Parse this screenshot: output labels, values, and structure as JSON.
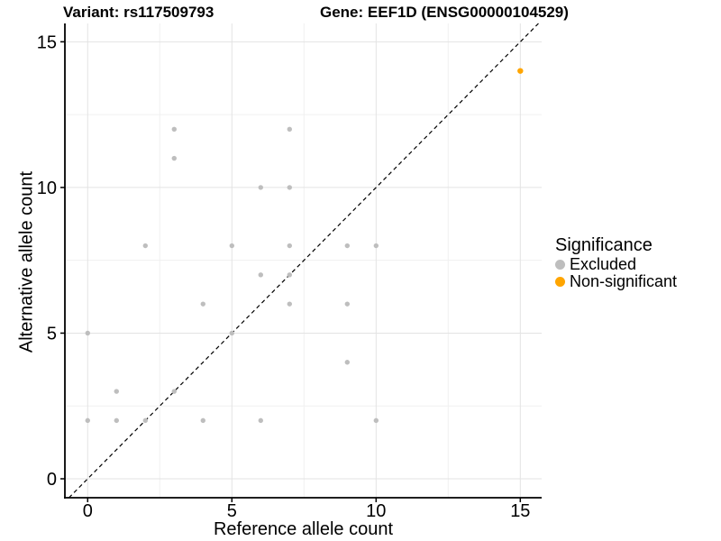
{
  "titles": {
    "variant": "Variant: rs117509793",
    "gene": "Gene: EEF1D (ENSG00000104529)"
  },
  "legend": {
    "title": "Significance",
    "items": [
      {
        "label": "Excluded",
        "color": "#BEBEBE"
      },
      {
        "label": "Non-significant",
        "color": "#FFA500"
      }
    ]
  },
  "chart_data": {
    "type": "scatter",
    "title_left": "Variant: rs117509793",
    "title_right": "Gene: EEF1D (ENSG00000104529)",
    "xlabel": "Reference allele count",
    "ylabel": "Alternative allele count",
    "xlim": [
      -0.79,
      15.74
    ],
    "ylim": [
      -0.65,
      15.63
    ],
    "x_ticks": [
      0,
      5,
      10,
      15
    ],
    "y_ticks": [
      0,
      5,
      10,
      15
    ],
    "x_minor_ticks": [
      2.5,
      7.5,
      12.5
    ],
    "y_minor_ticks": [
      2.5,
      7.5,
      12.5
    ],
    "grid": true,
    "legend_position": "right",
    "abline": {
      "slope": 1,
      "intercept": 0,
      "style": "dashed",
      "color": "#000000"
    },
    "colors": {
      "major_grid": "#E3E3E3",
      "minor_grid": "#F0F0F0",
      "axis_line": "#000000",
      "excluded": "#BEBEBE",
      "non_significant": "#FFA500"
    },
    "series": [
      {
        "name": "Excluded",
        "color": "#BEBEBE",
        "radius": 2.7,
        "points": [
          [
            0,
            2
          ],
          [
            0,
            5
          ],
          [
            1,
            2
          ],
          [
            1,
            3
          ],
          [
            2,
            2
          ],
          [
            2,
            8
          ],
          [
            3,
            3
          ],
          [
            3,
            11
          ],
          [
            3,
            12
          ],
          [
            4,
            2
          ],
          [
            4,
            6
          ],
          [
            5,
            5
          ],
          [
            5,
            8
          ],
          [
            6,
            2
          ],
          [
            6,
            7
          ],
          [
            6,
            10
          ],
          [
            7,
            6
          ],
          [
            7,
            7
          ],
          [
            7,
            8
          ],
          [
            7,
            10
          ],
          [
            7,
            12
          ],
          [
            9,
            4
          ],
          [
            9,
            6
          ],
          [
            9,
            8
          ],
          [
            10,
            2
          ],
          [
            10,
            8
          ]
        ]
      },
      {
        "name": "Non-significant",
        "color": "#FFA500",
        "radius": 3.2,
        "points": [
          [
            15,
            14
          ]
        ]
      }
    ]
  }
}
